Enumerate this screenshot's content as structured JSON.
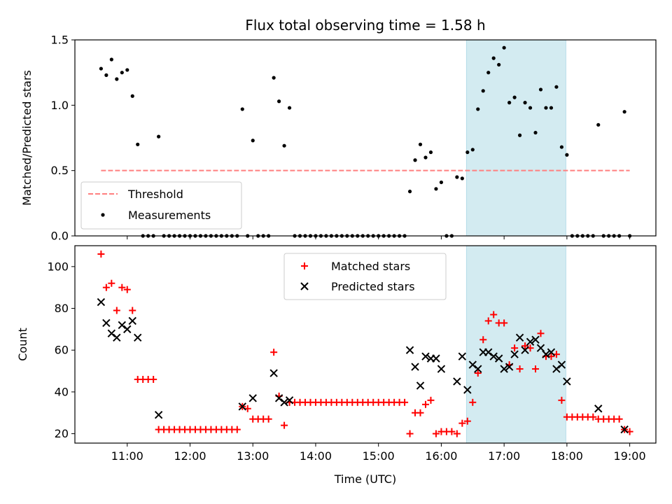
{
  "chart_data": [
    {
      "type": "scatter",
      "title": "Flux total observing time = 1.58 h",
      "ylabel": "Matched/Predicted stars",
      "xlabel": "",
      "xlim": [
        "10:10",
        "19:25"
      ],
      "ylim": [
        0,
        1.5
      ],
      "yticks": [
        "0.0",
        "0.5",
        "1.0",
        "1.5"
      ],
      "highlight_span": {
        "start": "16:24",
        "end": "17:59",
        "color": "#d3ebf1"
      },
      "threshold": {
        "name": "Threshold",
        "value": 0.5,
        "x_start": "10:35",
        "x_end": "19:00",
        "color": "#ff7f7f",
        "style": "dashed"
      },
      "series": [
        {
          "name": "Measurements",
          "color": "#000000",
          "marker": "dot",
          "points": [
            [
              "10:35",
              1.28
            ],
            [
              "10:40",
              1.23
            ],
            [
              "10:45",
              1.35
            ],
            [
              "10:50",
              1.2
            ],
            [
              "10:55",
              1.25
            ],
            [
              "11:00",
              1.27
            ],
            [
              "11:05",
              1.07
            ],
            [
              "11:10",
              0.7
            ],
            [
              "11:15",
              0
            ],
            [
              "11:20",
              0
            ],
            [
              "11:25",
              0
            ],
            [
              "11:30",
              0.76
            ],
            [
              "11:35",
              0
            ],
            [
              "11:40",
              0
            ],
            [
              "11:45",
              0
            ],
            [
              "11:50",
              0
            ],
            [
              "11:55",
              0
            ],
            [
              "12:00",
              0
            ],
            [
              "12:05",
              0
            ],
            [
              "12:10",
              0
            ],
            [
              "12:15",
              0
            ],
            [
              "12:20",
              0
            ],
            [
              "12:25",
              0
            ],
            [
              "12:30",
              0
            ],
            [
              "12:35",
              0
            ],
            [
              "12:40",
              0
            ],
            [
              "12:45",
              0
            ],
            [
              "12:50",
              0.97
            ],
            [
              "12:55",
              0
            ],
            [
              "13:00",
              0.73
            ],
            [
              "13:05",
              0
            ],
            [
              "13:10",
              0
            ],
            [
              "13:15",
              0
            ],
            [
              "13:20",
              1.21
            ],
            [
              "13:25",
              1.03
            ],
            [
              "13:30",
              0.69
            ],
            [
              "13:35",
              0.98
            ],
            [
              "13:40",
              0
            ],
            [
              "13:45",
              0
            ],
            [
              "13:50",
              0
            ],
            [
              "13:55",
              0
            ],
            [
              "14:00",
              0
            ],
            [
              "14:05",
              0
            ],
            [
              "14:10",
              0
            ],
            [
              "14:15",
              0
            ],
            [
              "14:20",
              0
            ],
            [
              "14:25",
              0
            ],
            [
              "14:30",
              0
            ],
            [
              "14:35",
              0
            ],
            [
              "14:40",
              0
            ],
            [
              "14:45",
              0
            ],
            [
              "14:50",
              0
            ],
            [
              "14:55",
              0
            ],
            [
              "15:00",
              0
            ],
            [
              "15:05",
              0
            ],
            [
              "15:10",
              0
            ],
            [
              "15:15",
              0
            ],
            [
              "15:20",
              0
            ],
            [
              "15:25",
              0
            ],
            [
              "15:30",
              0.34
            ],
            [
              "15:35",
              0.58
            ],
            [
              "15:40",
              0.7
            ],
            [
              "15:45",
              0.6
            ],
            [
              "15:50",
              0.64
            ],
            [
              "15:55",
              0.36
            ],
            [
              "16:00",
              0.41
            ],
            [
              "16:05",
              0
            ],
            [
              "16:10",
              0
            ],
            [
              "16:15",
              0.45
            ],
            [
              "16:20",
              0.44
            ],
            [
              "16:25",
              0.64
            ],
            [
              "16:30",
              0.66
            ],
            [
              "16:35",
              0.97
            ],
            [
              "16:40",
              1.11
            ],
            [
              "16:45",
              1.25
            ],
            [
              "16:50",
              1.36
            ],
            [
              "16:55",
              1.31
            ],
            [
              "17:00",
              1.44
            ],
            [
              "17:05",
              1.02
            ],
            [
              "17:10",
              1.06
            ],
            [
              "17:15",
              0.77
            ],
            [
              "17:20",
              1.02
            ],
            [
              "17:25",
              0.98
            ],
            [
              "17:30",
              0.79
            ],
            [
              "17:35",
              1.12
            ],
            [
              "17:40",
              0.98
            ],
            [
              "17:45",
              0.98
            ],
            [
              "17:50",
              1.14
            ],
            [
              "17:55",
              0.68
            ],
            [
              "18:00",
              0.62
            ],
            [
              "18:05",
              0
            ],
            [
              "18:10",
              0
            ],
            [
              "18:15",
              0
            ],
            [
              "18:20",
              0
            ],
            [
              "18:25",
              0
            ],
            [
              "18:30",
              0.85
            ],
            [
              "18:35",
              0
            ],
            [
              "18:40",
              0
            ],
            [
              "18:45",
              0
            ],
            [
              "18:50",
              0
            ],
            [
              "18:55",
              0.95
            ],
            [
              "19:00",
              0
            ]
          ]
        }
      ],
      "legend": {
        "location": "lower-left",
        "entries": [
          "Threshold",
          "Measurements"
        ]
      }
    },
    {
      "type": "scatter",
      "title": "",
      "ylabel": "Count",
      "xlabel": "Time (UTC)",
      "xlim": [
        "10:10",
        "19:25"
      ],
      "ylim": [
        15.5,
        110
      ],
      "yticks": [
        "20",
        "40",
        "60",
        "80",
        "100"
      ],
      "xticks": [
        "11:00",
        "12:00",
        "13:00",
        "14:00",
        "15:00",
        "16:00",
        "17:00",
        "18:00",
        "19:00"
      ],
      "highlight_span": {
        "start": "16:24",
        "end": "17:59",
        "color": "#d3ebf1"
      },
      "series": [
        {
          "name": "Matched stars",
          "color": "#ff0000",
          "marker": "plus",
          "points": [
            [
              "10:35",
              106
            ],
            [
              "10:40",
              90
            ],
            [
              "10:45",
              92
            ],
            [
              "10:50",
              79
            ],
            [
              "10:55",
              90
            ],
            [
              "11:00",
              89
            ],
            [
              "11:05",
              79
            ],
            [
              "11:10",
              46
            ],
            [
              "11:15",
              46
            ],
            [
              "11:20",
              46
            ],
            [
              "11:25",
              46
            ],
            [
              "11:30",
              22
            ],
            [
              "11:35",
              22
            ],
            [
              "11:40",
              22
            ],
            [
              "11:45",
              22
            ],
            [
              "11:50",
              22
            ],
            [
              "11:55",
              22
            ],
            [
              "12:00",
              22
            ],
            [
              "12:05",
              22
            ],
            [
              "12:10",
              22
            ],
            [
              "12:15",
              22
            ],
            [
              "12:20",
              22
            ],
            [
              "12:25",
              22
            ],
            [
              "12:30",
              22
            ],
            [
              "12:35",
              22
            ],
            [
              "12:40",
              22
            ],
            [
              "12:45",
              22
            ],
            [
              "12:50",
              33
            ],
            [
              "12:55",
              32
            ],
            [
              "13:00",
              27
            ],
            [
              "13:05",
              27
            ],
            [
              "13:10",
              27
            ],
            [
              "13:15",
              27
            ],
            [
              "13:20",
              59
            ],
            [
              "13:25",
              38
            ],
            [
              "13:30",
              24
            ],
            [
              "13:35",
              35
            ],
            [
              "13:40",
              35
            ],
            [
              "13:45",
              35
            ],
            [
              "13:50",
              35
            ],
            [
              "13:55",
              35
            ],
            [
              "14:00",
              35
            ],
            [
              "14:05",
              35
            ],
            [
              "14:10",
              35
            ],
            [
              "14:15",
              35
            ],
            [
              "14:20",
              35
            ],
            [
              "14:25",
              35
            ],
            [
              "14:30",
              35
            ],
            [
              "14:35",
              35
            ],
            [
              "14:40",
              35
            ],
            [
              "14:45",
              35
            ],
            [
              "14:50",
              35
            ],
            [
              "14:55",
              35
            ],
            [
              "15:00",
              35
            ],
            [
              "15:05",
              35
            ],
            [
              "15:10",
              35
            ],
            [
              "15:15",
              35
            ],
            [
              "15:20",
              35
            ],
            [
              "15:25",
              35
            ],
            [
              "15:30",
              20
            ],
            [
              "15:35",
              30
            ],
            [
              "15:40",
              30
            ],
            [
              "15:45",
              34
            ],
            [
              "15:50",
              36
            ],
            [
              "15:55",
              20
            ],
            [
              "16:00",
              21
            ],
            [
              "16:05",
              21
            ],
            [
              "16:10",
              21
            ],
            [
              "16:15",
              20
            ],
            [
              "16:20",
              25
            ],
            [
              "16:25",
              26
            ],
            [
              "16:30",
              35
            ],
            [
              "16:35",
              49
            ],
            [
              "16:40",
              65
            ],
            [
              "16:45",
              74
            ],
            [
              "16:50",
              77
            ],
            [
              "16:55",
              73
            ],
            [
              "17:00",
              73
            ],
            [
              "17:05",
              53
            ],
            [
              "17:10",
              61
            ],
            [
              "17:15",
              51
            ],
            [
              "17:20",
              62
            ],
            [
              "17:25",
              61
            ],
            [
              "17:30",
              51
            ],
            [
              "17:35",
              68
            ],
            [
              "17:40",
              57
            ],
            [
              "17:45",
              57
            ],
            [
              "17:50",
              58
            ],
            [
              "17:55",
              36
            ],
            [
              "18:00",
              28
            ],
            [
              "18:05",
              28
            ],
            [
              "18:10",
              28
            ],
            [
              "18:15",
              28
            ],
            [
              "18:20",
              28
            ],
            [
              "18:25",
              28
            ],
            [
              "18:30",
              27
            ],
            [
              "18:35",
              27
            ],
            [
              "18:40",
              27
            ],
            [
              "18:45",
              27
            ],
            [
              "18:50",
              27
            ],
            [
              "18:55",
              22
            ],
            [
              "19:00",
              21
            ]
          ]
        },
        {
          "name": "Predicted stars",
          "color": "#000000",
          "marker": "x",
          "points": [
            [
              "10:35",
              83
            ],
            [
              "10:40",
              73
            ],
            [
              "10:45",
              68
            ],
            [
              "10:50",
              66
            ],
            [
              "10:55",
              72
            ],
            [
              "11:00",
              70
            ],
            [
              "11:05",
              74
            ],
            [
              "11:10",
              66
            ],
            [
              "11:30",
              29
            ],
            [
              "12:50",
              33
            ],
            [
              "13:00",
              37
            ],
            [
              "13:20",
              49
            ],
            [
              "13:25",
              37
            ],
            [
              "13:30",
              35
            ],
            [
              "13:35",
              36
            ],
            [
              "15:30",
              60
            ],
            [
              "15:35",
              52
            ],
            [
              "15:40",
              43
            ],
            [
              "15:45",
              57
            ],
            [
              "15:50",
              56
            ],
            [
              "15:55",
              56
            ],
            [
              "16:00",
              51
            ],
            [
              "16:15",
              45
            ],
            [
              "16:20",
              57
            ],
            [
              "16:25",
              41
            ],
            [
              "16:30",
              53
            ],
            [
              "16:35",
              51
            ],
            [
              "16:40",
              59
            ],
            [
              "16:45",
              59
            ],
            [
              "16:50",
              57
            ],
            [
              "16:55",
              56
            ],
            [
              "17:00",
              51
            ],
            [
              "17:05",
              52
            ],
            [
              "17:10",
              58
            ],
            [
              "17:15",
              66
            ],
            [
              "17:20",
              60
            ],
            [
              "17:25",
              64
            ],
            [
              "17:30",
              65
            ],
            [
              "17:35",
              61
            ],
            [
              "17:40",
              58
            ],
            [
              "17:45",
              59
            ],
            [
              "17:50",
              51
            ],
            [
              "17:55",
              53
            ],
            [
              "18:00",
              45
            ],
            [
              "18:30",
              32
            ],
            [
              "18:55",
              22
            ]
          ]
        }
      ],
      "legend": {
        "location": "upper-center",
        "entries": [
          "Matched stars",
          "Predicted stars"
        ]
      }
    }
  ]
}
